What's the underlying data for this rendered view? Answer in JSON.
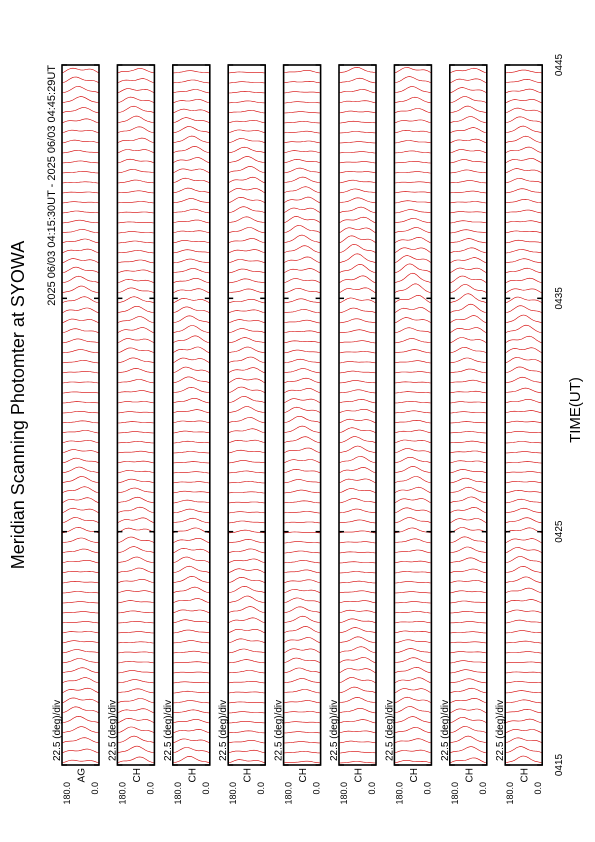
{
  "chart_data": {
    "type": "line",
    "title": "Meridian Scanning Photomter at SYOWA",
    "subtitle": "2025 06/03 04:15:30UT - 2025 06/03 04:45:29UT",
    "x_label": "TIME(UT)",
    "xlim": [
      255,
      285
    ],
    "xticks": [
      {
        "value": 255,
        "label": "0415"
      },
      {
        "value": 265,
        "label": "0425"
      },
      {
        "value": 275,
        "label": "0435"
      },
      {
        "value": 285,
        "label": "0445"
      }
    ],
    "ylim": [
      0,
      180
    ],
    "yticks": [
      {
        "value": 180,
        "label": "180.0"
      },
      {
        "value": 0,
        "label": "0.0"
      }
    ],
    "color": "#d40000",
    "panels": [
      {
        "name": "AG",
        "scale": "22.5 (deg)/div"
      },
      {
        "name": "CH",
        "scale": "22.5 (deg)/div"
      },
      {
        "name": "CH",
        "scale": "22.5 (deg)/div"
      },
      {
        "name": "CH",
        "scale": "22.5 (deg)/div"
      },
      {
        "name": "CH",
        "scale": "22.5 (deg)/div"
      },
      {
        "name": "CH",
        "scale": "22.5 (deg)/div"
      },
      {
        "name": "CH",
        "scale": "22.5 (deg)/div"
      },
      {
        "name": "CH",
        "scale": "22.5 (deg)/div"
      },
      {
        "name": "CH",
        "scale": "22.5 (deg)/div"
      }
    ]
  }
}
